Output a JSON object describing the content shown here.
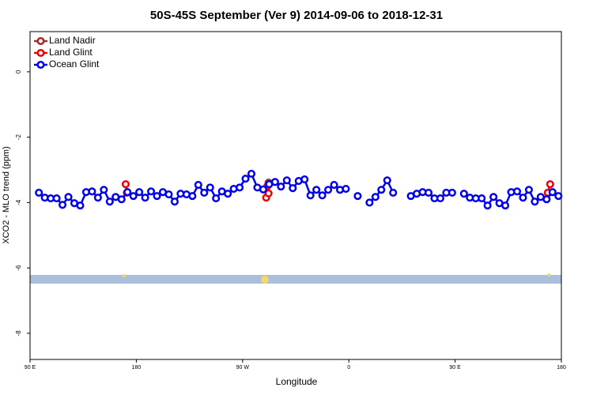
{
  "chart_data": {
    "type": "line",
    "title": "50S-45S September (Ver 9)   2014-09-06 to 2018-12-31",
    "x_label": "Longitude",
    "y_label": "XCO2 - MLO trend (ppm)",
    "xlim": [
      90,
      540
    ],
    "xticks": [
      {
        "value": 90,
        "label": "90 E"
      },
      180,
      {
        "value": 270,
        "label": "90 W"
      },
      {
        "value": 360,
        "label": "0"
      },
      {
        "value": 450,
        "label": "90 E"
      },
      180.0001
    ],
    "ylim": [
      -8.8,
      1.23
    ],
    "yticks": [
      0,
      -2,
      -4,
      -6,
      -8
    ],
    "legend": "top-left",
    "series": [
      {
        "name": "Land Nadir",
        "color": "#a52a2a",
        "x": [
          292
        ],
        "values": [
          -3.39
        ]
      },
      {
        "name": "Land Glint",
        "color": "#ee0000",
        "x": [
          171,
          172,
          null,
          290,
          292,
          291,
          null,
          530.5,
          528.5
        ],
        "values": [
          -3.44,
          -3.7,
          null,
          -3.85,
          -3.72,
          -3.5,
          null,
          -3.44,
          -3.7
        ]
      },
      {
        "name": "Ocean Glint",
        "color": "#0000ee",
        "x": [
          97.5,
          102.5,
          107.5,
          112.5,
          117.5,
          122.5,
          127.5,
          132.5,
          137.5,
          142.5,
          147.5,
          152.5,
          157.5,
          162.5,
          167.5,
          172.5,
          177.5,
          182.5,
          187.5,
          192.5,
          197.5,
          202.5,
          207.5,
          212.5,
          217.5,
          222.5,
          227.5,
          232.5,
          237.5,
          242.5,
          247.5,
          252.5,
          257.5,
          262.5,
          267.5,
          272.5,
          277.5,
          282.5,
          287.5,
          292.5,
          297.5,
          302.5,
          307.5,
          312.5,
          317.5,
          322.5,
          327.5,
          332.5,
          337.5,
          342.5,
          347.5,
          352.5,
          357.5,
          362.5,
          367.5,
          372.5,
          377.5,
          382.5,
          387.5,
          392.5,
          397.5,
          402.5,
          407.5,
          412.5,
          417.5,
          422.5,
          427.5,
          432.5,
          437.5,
          442.5,
          447.5,
          452.5,
          457.5,
          462.5,
          467.5,
          472.5,
          477.5,
          482.5,
          487.5,
          492.5,
          497.5,
          502.5,
          507.5,
          512.5,
          517.5,
          522.5,
          527.5,
          532.5,
          537.5
        ],
        "values": [
          -3.7,
          -3.85,
          -3.87,
          -3.87,
          -4.07,
          -3.83,
          -4.02,
          -4.09,
          -3.68,
          -3.66,
          -3.85,
          -3.61,
          -3.97,
          -3.83,
          -3.9,
          -3.68,
          -3.8,
          -3.68,
          -3.85,
          -3.66,
          -3.8,
          -3.68,
          -3.75,
          -3.97,
          -3.73,
          -3.75,
          -3.8,
          -3.46,
          -3.7,
          -3.54,
          -3.87,
          -3.66,
          -3.73,
          -3.58,
          -3.54,
          -3.27,
          -3.12,
          -3.54,
          -3.6,
          -3.44,
          -3.37,
          -3.51,
          -3.32,
          -3.56,
          -3.34,
          -3.29,
          -3.78,
          -3.61,
          -3.78,
          -3.61,
          -3.46,
          -3.61,
          -3.58,
          null,
          -3.8,
          null,
          -4.0,
          -3.83,
          -3.61,
          -3.32,
          -3.7,
          null,
          null,
          -3.8,
          -3.73,
          -3.68,
          -3.7,
          -3.87,
          -3.87,
          -3.7,
          -3.7,
          null,
          -3.73,
          -3.85,
          -3.87,
          -3.87,
          -4.09,
          -3.83,
          -4.02,
          -4.09,
          -3.68,
          -3.66,
          -3.85,
          -3.61,
          -3.97,
          -3.83,
          -3.9,
          -3.68,
          -3.8
        ]
      }
    ]
  }
}
